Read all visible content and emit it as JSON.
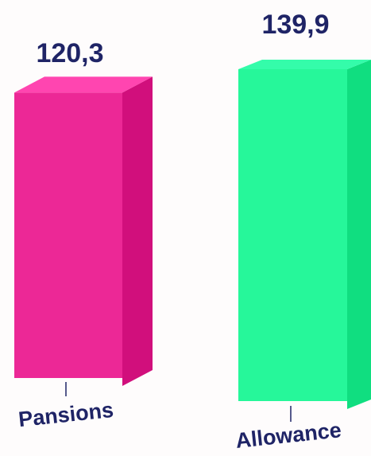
{
  "chart_data": {
    "type": "bar",
    "style": "3d",
    "categories": [
      "Pansions",
      "Allowance"
    ],
    "values": [
      120.3,
      139.9
    ],
    "value_labels": [
      "120,3",
      "139,9"
    ],
    "title": "",
    "xlabel": "",
    "ylabel": "",
    "ylim": [
      0,
      139.9
    ],
    "grid": false,
    "legend": "none",
    "colors": [
      {
        "front": "#ec2896",
        "side": "#d10f7c",
        "top": "#ff45b0"
      },
      {
        "front": "#26f79a",
        "side": "#10de80",
        "top": "#34fcaa"
      }
    ]
  }
}
